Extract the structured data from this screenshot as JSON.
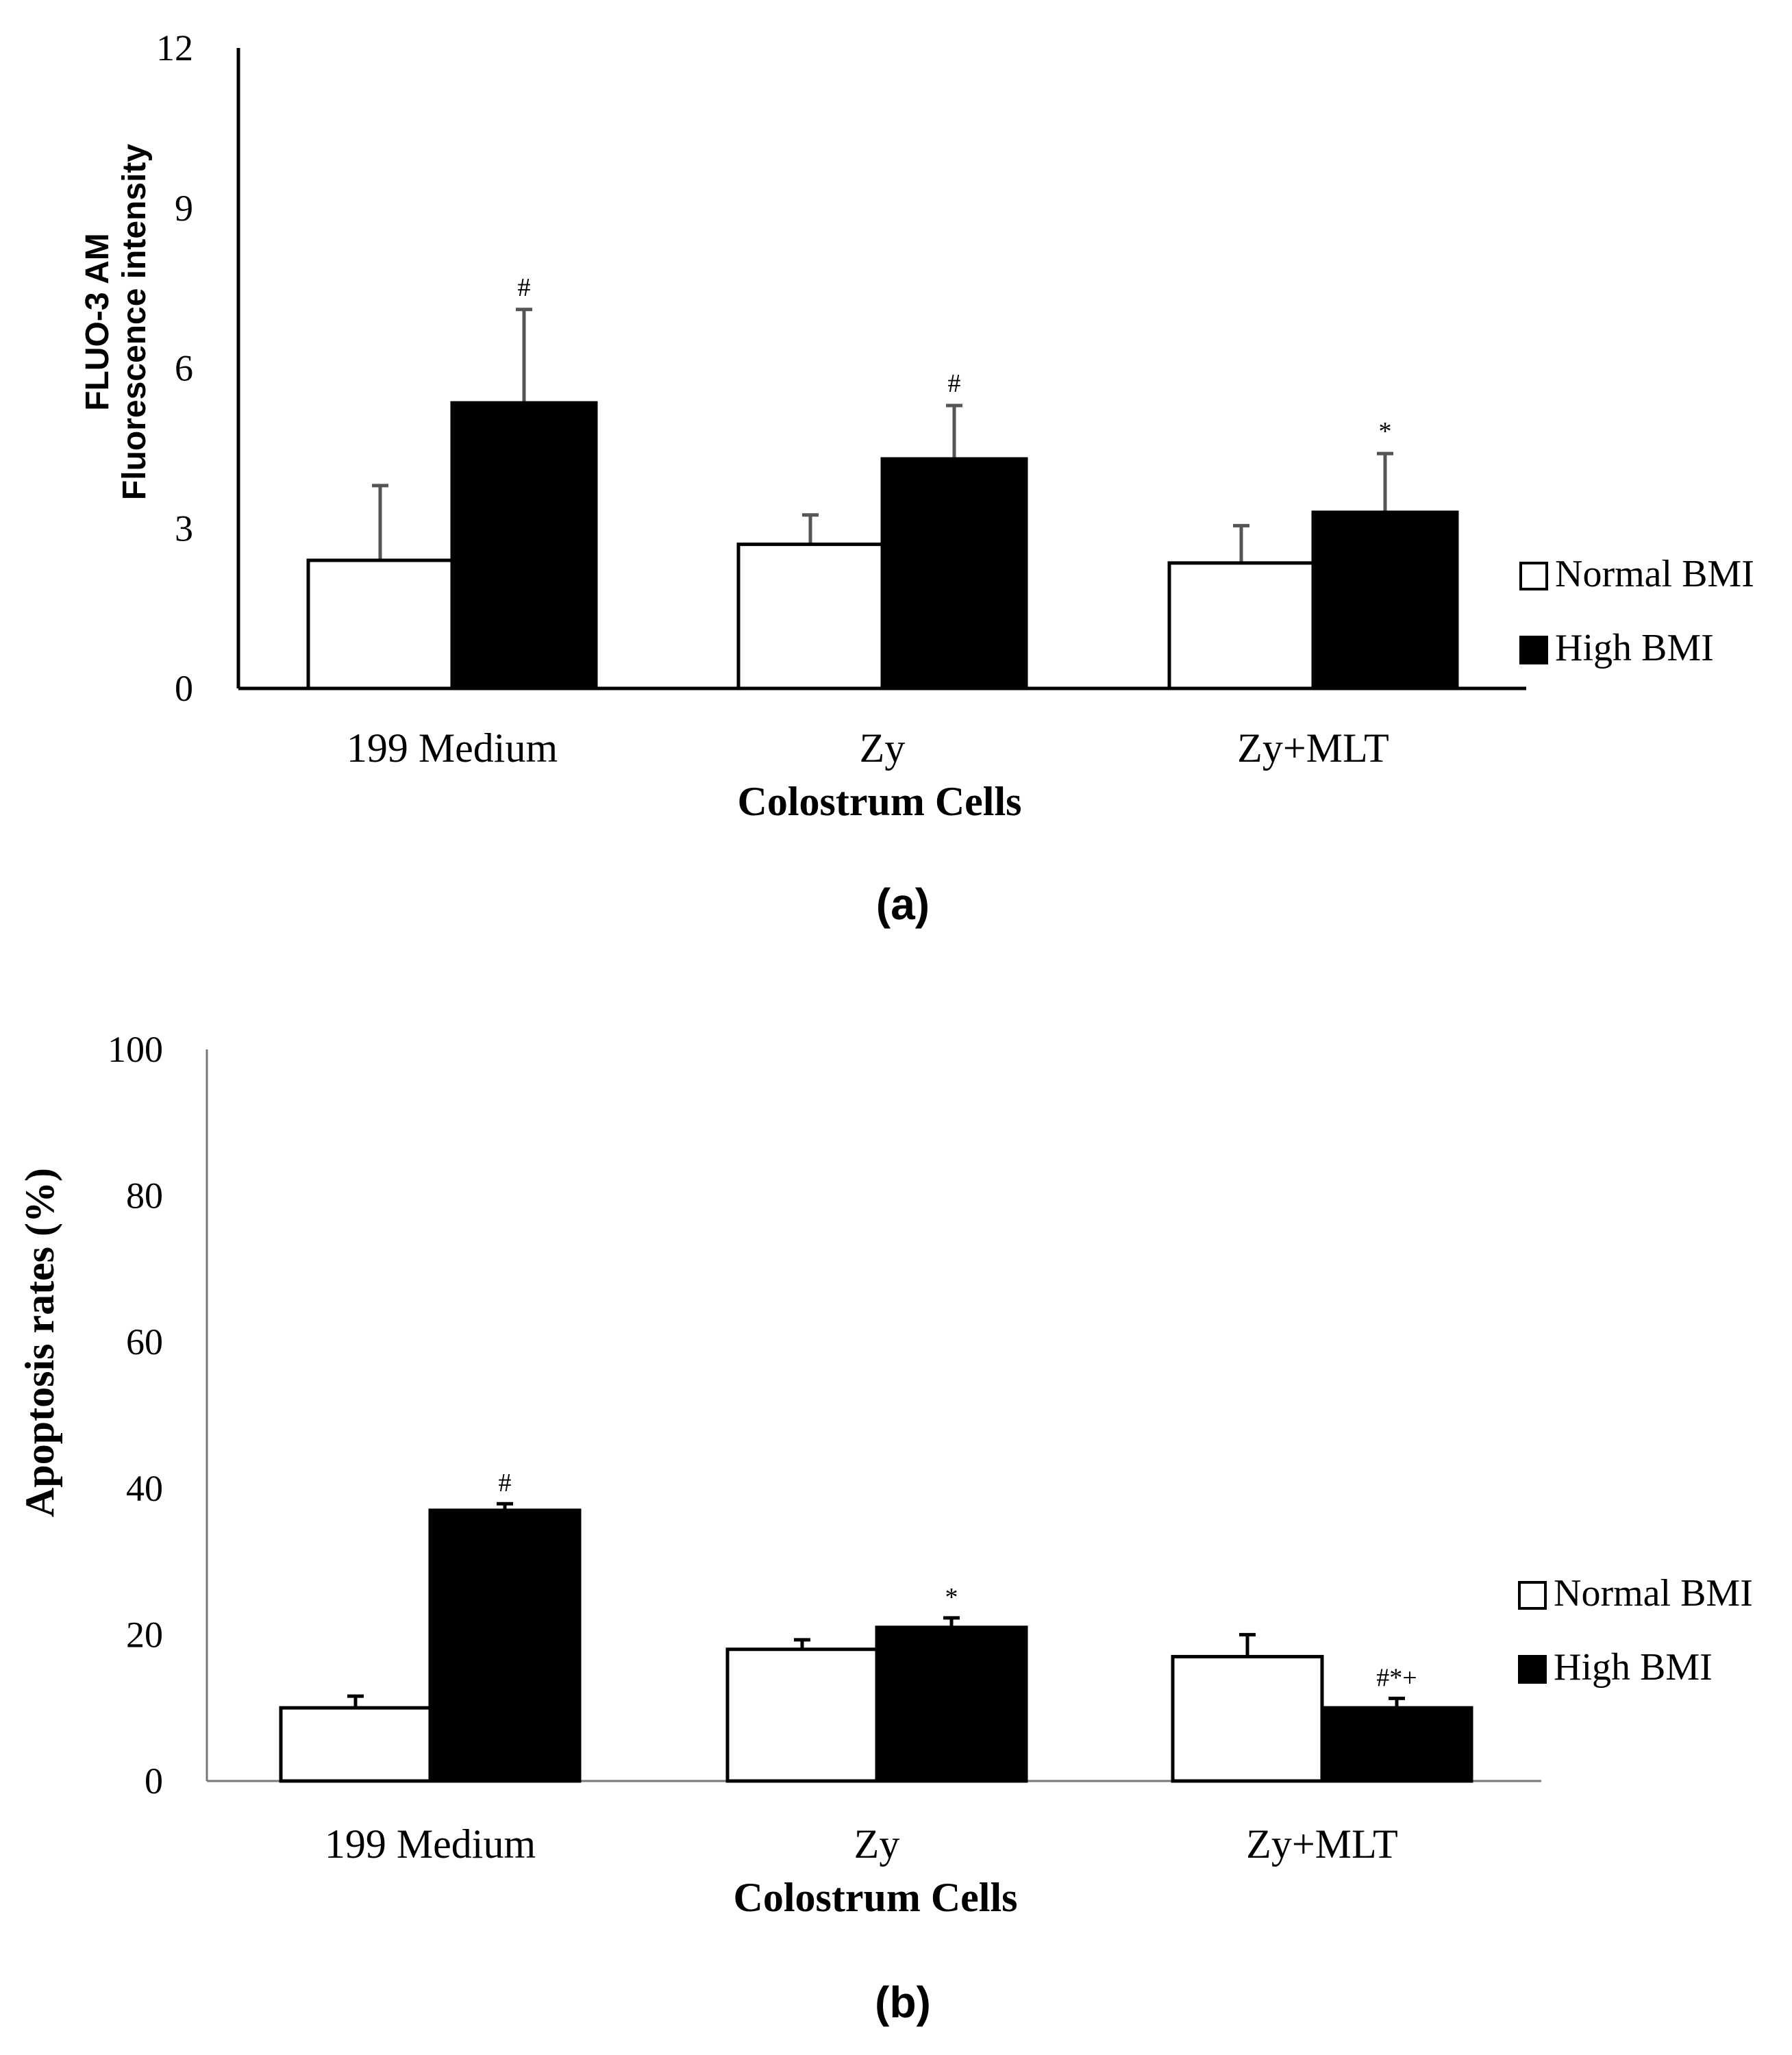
{
  "chart_data": [
    {
      "type": "bar",
      "panel_label": "(a)",
      "ylabel_lines": [
        "FLUO-3 AM",
        "Fluorescence intensity"
      ],
      "xlabel": "Colostrum Cells",
      "categories": [
        "199 Medium",
        "Zy",
        "Zy+MLT"
      ],
      "ylim": [
        0,
        12
      ],
      "yticks": [
        "0",
        "3",
        "6",
        "9",
        "12"
      ],
      "grid": false,
      "legend_position": "right",
      "series": [
        {
          "name": "Normal BMI",
          "fill": "#ffffff",
          "values": [
            2.4,
            2.7,
            2.35
          ],
          "errors": [
            1.4,
            0.55,
            0.7
          ],
          "annotations": [
            "",
            "",
            ""
          ]
        },
        {
          "name": "High BMI",
          "fill": "#000000",
          "values": [
            5.35,
            4.3,
            3.3
          ],
          "errors": [
            1.75,
            1.0,
            1.1
          ],
          "annotations": [
            "#",
            "#",
            "*"
          ]
        }
      ]
    },
    {
      "type": "bar",
      "panel_label": "(b)",
      "ylabel_lines": [
        "Apoptosis rates (%)"
      ],
      "xlabel": "Colostrum Cells",
      "categories": [
        "199 Medium",
        "Zy",
        "Zy+MLT"
      ],
      "ylim": [
        0,
        100
      ],
      "yticks": [
        "0",
        "20",
        "40",
        "60",
        "80",
        "100"
      ],
      "grid": false,
      "legend_position": "right",
      "series": [
        {
          "name": "Normal BMI",
          "fill": "#ffffff",
          "values": [
            10,
            18,
            17
          ],
          "errors": [
            1.6,
            1.3,
            3.0
          ],
          "annotations": [
            "",
            "",
            ""
          ]
        },
        {
          "name": "High BMI",
          "fill": "#000000",
          "values": [
            37,
            21,
            10
          ],
          "errors": [
            0.9,
            1.3,
            1.3
          ],
          "annotations": [
            "#",
            "*",
            "#*+"
          ]
        }
      ]
    }
  ]
}
